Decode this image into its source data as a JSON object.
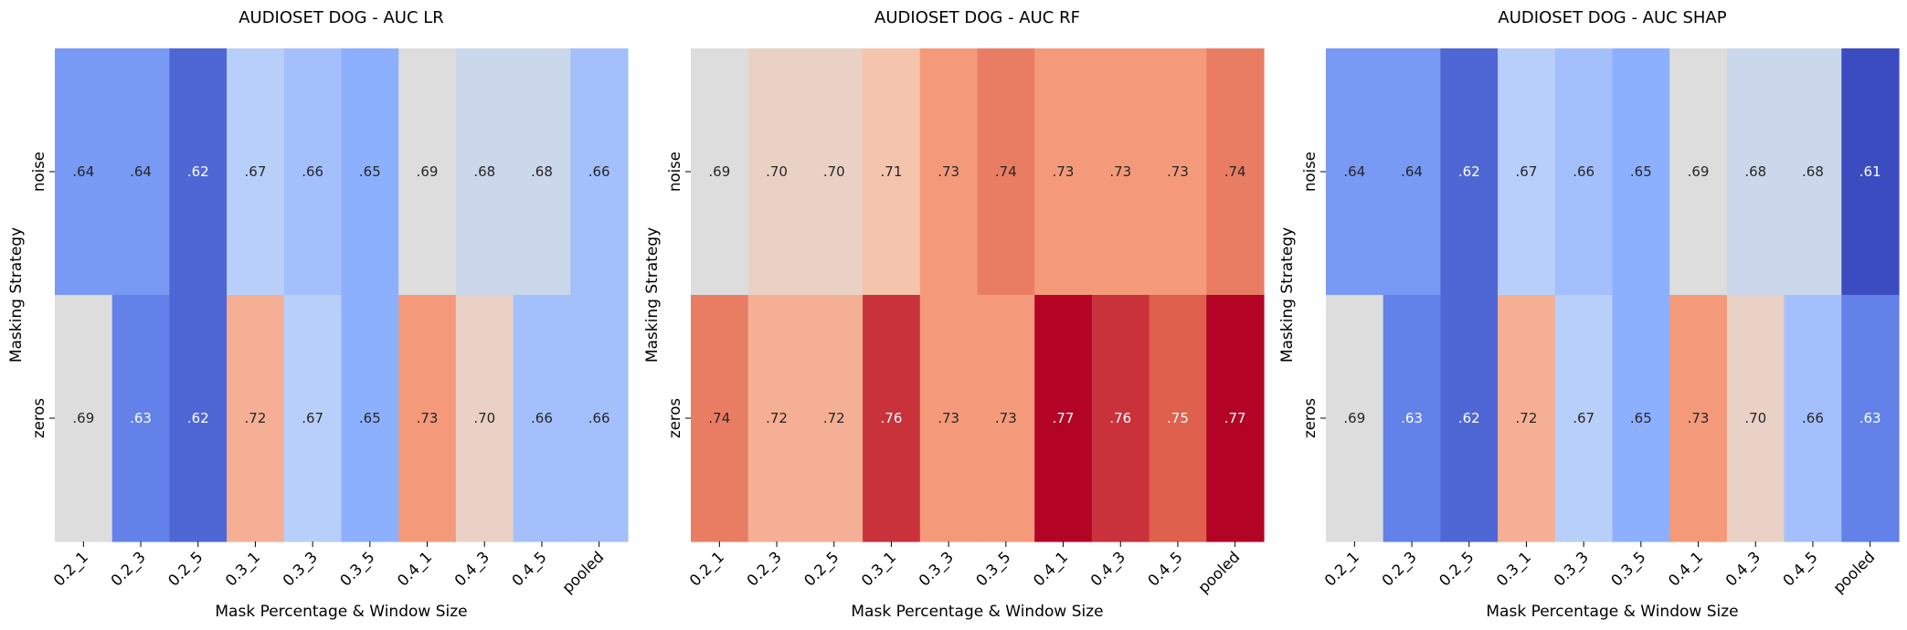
{
  "chart_data": [
    {
      "type": "heatmap",
      "title": "AUDIOSET DOG - AUC LR",
      "xlabel": "Mask Percentage & Window Size",
      "ylabel": "Masking Strategy",
      "x_categories": [
        "0.2_1",
        "0.2_3",
        "0.2_5",
        "0.3_1",
        "0.3_3",
        "0.3_5",
        "0.4_1",
        "0.4_3",
        "0.4_5",
        "pooled"
      ],
      "y_categories": [
        "noise",
        "zeros"
      ],
      "values": [
        [
          0.64,
          0.64,
          0.62,
          0.67,
          0.66,
          0.65,
          0.69,
          0.68,
          0.68,
          0.66
        ],
        [
          0.69,
          0.63,
          0.62,
          0.72,
          0.67,
          0.65,
          0.73,
          0.7,
          0.66,
          0.66
        ]
      ],
      "cell_labels": [
        [
          ".64",
          ".64",
          ".62",
          ".67",
          ".66",
          ".65",
          ".69",
          ".68",
          ".68",
          ".66"
        ],
        [
          ".69",
          ".63",
          ".62",
          ".72",
          ".67",
          ".65",
          ".73",
          ".70",
          ".66",
          ".66"
        ]
      ],
      "colormap": "coolwarm",
      "colorbar": false
    },
    {
      "type": "heatmap",
      "title": "AUDIOSET DOG - AUC RF",
      "xlabel": "Mask Percentage & Window Size",
      "ylabel": "Masking Strategy",
      "x_categories": [
        "0.2_1",
        "0.2_3",
        "0.2_5",
        "0.3_1",
        "0.3_3",
        "0.3_5",
        "0.4_1",
        "0.4_3",
        "0.4_5",
        "pooled"
      ],
      "y_categories": [
        "noise",
        "zeros"
      ],
      "values": [
        [
          0.69,
          0.7,
          0.7,
          0.71,
          0.73,
          0.74,
          0.73,
          0.73,
          0.73,
          0.74
        ],
        [
          0.74,
          0.72,
          0.72,
          0.76,
          0.73,
          0.73,
          0.77,
          0.76,
          0.75,
          0.77
        ]
      ],
      "cell_labels": [
        [
          ".69",
          ".70",
          ".70",
          ".71",
          ".73",
          ".74",
          ".73",
          ".73",
          ".73",
          ".74"
        ],
        [
          ".74",
          ".72",
          ".72",
          ".76",
          ".73",
          ".73",
          ".77",
          ".76",
          ".75",
          ".77"
        ]
      ],
      "colormap": "coolwarm",
      "colorbar": false
    },
    {
      "type": "heatmap",
      "title": "AUDIOSET DOG - AUC SHAP",
      "xlabel": "Mask Percentage & Window Size",
      "ylabel": "Masking Strategy",
      "x_categories": [
        "0.2_1",
        "0.2_3",
        "0.2_5",
        "0.3_1",
        "0.3_3",
        "0.3_5",
        "0.4_1",
        "0.4_3",
        "0.4_5",
        "pooled"
      ],
      "y_categories": [
        "noise",
        "zeros"
      ],
      "values": [
        [
          0.64,
          0.64,
          0.62,
          0.67,
          0.66,
          0.65,
          0.69,
          0.68,
          0.68,
          0.61
        ],
        [
          0.69,
          0.63,
          0.62,
          0.72,
          0.67,
          0.65,
          0.73,
          0.7,
          0.66,
          0.63
        ]
      ],
      "cell_labels": [
        [
          ".64",
          ".64",
          ".62",
          ".67",
          ".66",
          ".65",
          ".69",
          ".68",
          ".68",
          ".61"
        ],
        [
          ".69",
          ".63",
          ".62",
          ".72",
          ".67",
          ".65",
          ".73",
          ".70",
          ".66",
          ".63"
        ]
      ],
      "colormap": "coolwarm",
      "colorbar": false
    }
  ]
}
